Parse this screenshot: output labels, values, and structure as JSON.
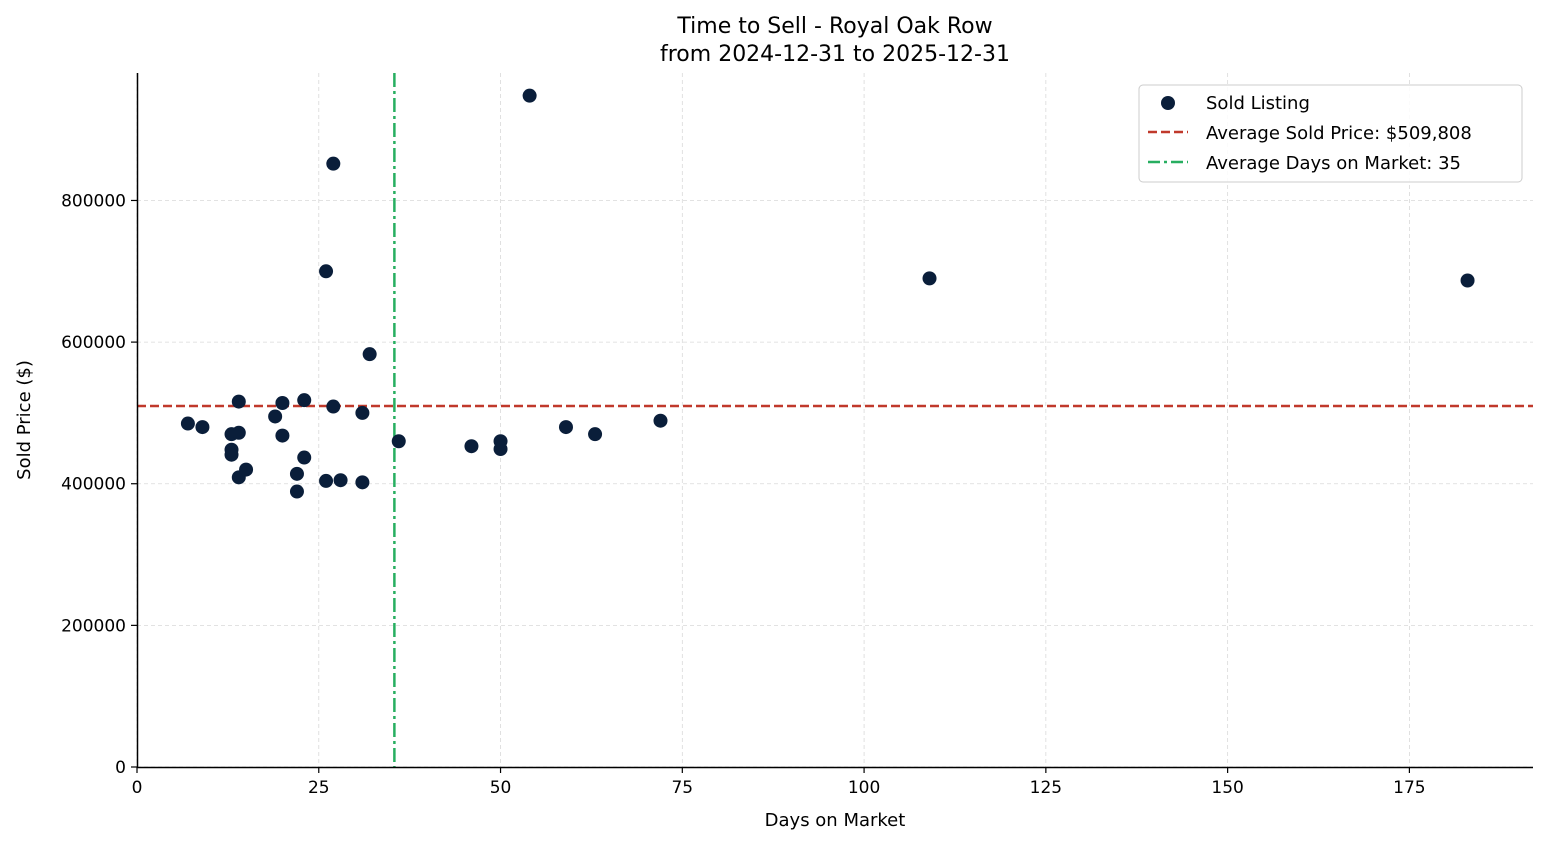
{
  "chart_data": {
    "type": "scatter",
    "title_line1": "Time to Sell - Royal Oak Row",
    "title_line2": "from 2024-12-31 to 2025-12-31",
    "xlabel": "Days on Market",
    "ylabel": "Sold Price ($)",
    "xlim": [
      0,
      192
    ],
    "ylim": [
      0,
      980000
    ],
    "x_ticks": [
      0,
      25,
      50,
      75,
      100,
      125,
      150,
      175
    ],
    "y_ticks": [
      0,
      200000,
      400000,
      600000,
      800000
    ],
    "grid": true,
    "legend_position": "top-right",
    "series": [
      {
        "name": "Sold Listing",
        "color": "#0a1e3a",
        "points": [
          [
            7,
            485000
          ],
          [
            9,
            480000
          ],
          [
            13,
            470000
          ],
          [
            13,
            448000
          ],
          [
            13,
            441000
          ],
          [
            14,
            516000
          ],
          [
            14,
            472000
          ],
          [
            14,
            409000
          ],
          [
            15,
            420000
          ],
          [
            19,
            495000
          ],
          [
            20,
            514000
          ],
          [
            20,
            468000
          ],
          [
            22,
            414000
          ],
          [
            22,
            389000
          ],
          [
            23,
            518000
          ],
          [
            23,
            437000
          ],
          [
            26,
            700000
          ],
          [
            26,
            404000
          ],
          [
            27,
            852000
          ],
          [
            27,
            509000
          ],
          [
            28,
            405000
          ],
          [
            31,
            500000
          ],
          [
            31,
            402000
          ],
          [
            32,
            583000
          ],
          [
            36,
            460000
          ],
          [
            46,
            453000
          ],
          [
            50,
            460000
          ],
          [
            50,
            449000
          ],
          [
            54,
            948000
          ],
          [
            59,
            480000
          ],
          [
            63,
            470000
          ],
          [
            72,
            489000
          ],
          [
            109,
            690000
          ],
          [
            183,
            687000
          ]
        ]
      }
    ],
    "reference_lines": [
      {
        "orientation": "horizontal",
        "value": 509808,
        "label": "Average Sold Price: $509,808",
        "color": "#c0392b",
        "style": "dashed"
      },
      {
        "orientation": "vertical",
        "value": 35.4,
        "label": "Average Days on Market: 35",
        "color": "#27ae60",
        "style": "dashdot"
      }
    ]
  }
}
